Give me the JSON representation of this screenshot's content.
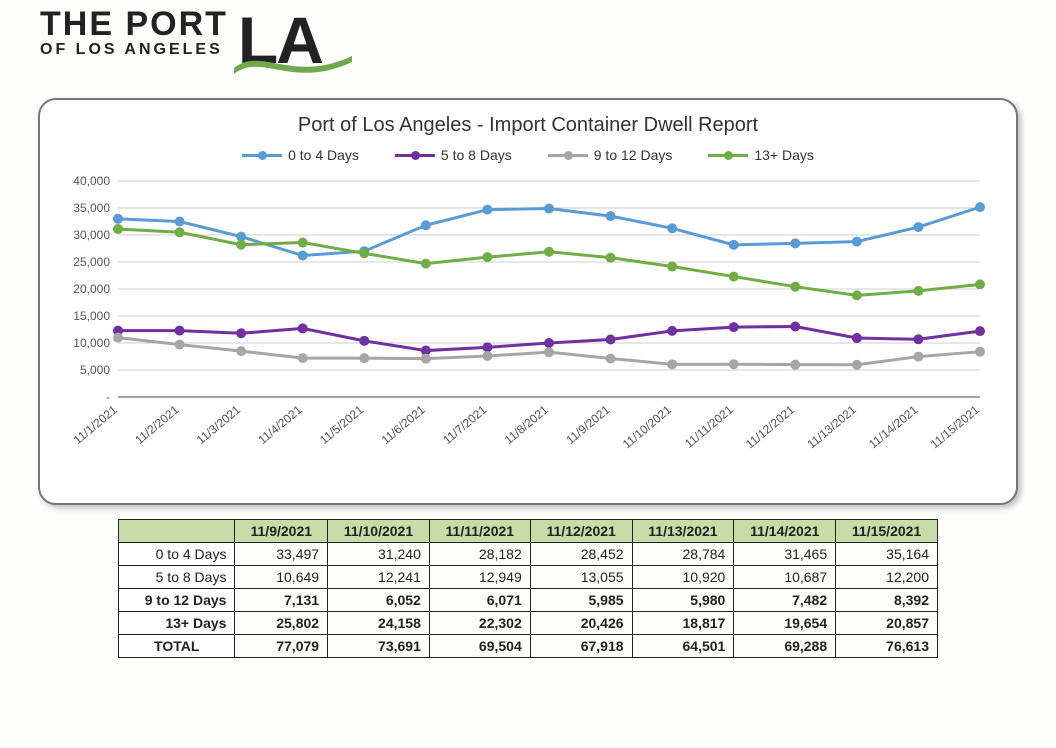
{
  "logo": {
    "line1": "THE PORT",
    "line2": "OF LOS ANGELES",
    "mark": "LA",
    "wave_color": "#6fa84f"
  },
  "chart": {
    "type": "line",
    "title": "Port of Los Angeles - Import Container Dwell Report",
    "title_fontsize": 20,
    "background_color": "#ffffff",
    "grid_color": "#cfcfcf",
    "axis_color": "#888888",
    "label_color": "#555555",
    "label_fontsize": 12,
    "line_width": 3,
    "marker_radius": 5,
    "x_labels": [
      "11/1/2021",
      "11/2/2021",
      "11/3/2021",
      "11/4/2021",
      "11/5/2021",
      "11/6/2021",
      "11/7/2021",
      "11/8/2021",
      "11/9/2021",
      "11/10/2021",
      "11/11/2021",
      "11/12/2021",
      "11/13/2021",
      "11/14/2021",
      "11/15/2021"
    ],
    "x_label_rotation": -40,
    "ylim": [
      0,
      40000
    ],
    "ytick_step": 5000,
    "y_format": "comma",
    "series": [
      {
        "name": "0 to 4 Days",
        "color": "#5b9bd5",
        "values": [
          33000,
          32500,
          29700,
          26200,
          27000,
          31800,
          34700,
          34900,
          33497,
          31240,
          28182,
          28452,
          28784,
          31465,
          35164
        ]
      },
      {
        "name": "5 to 8 Days",
        "color": "#7030a0",
        "values": [
          12300,
          12300,
          11800,
          12700,
          10400,
          8600,
          9200,
          10000,
          10649,
          12241,
          12949,
          13055,
          10920,
          10687,
          12200
        ]
      },
      {
        "name": "9 to 12 Days",
        "color": "#a6a6a6",
        "values": [
          11000,
          9700,
          8500,
          7200,
          7200,
          7100,
          7600,
          8300,
          7131,
          6052,
          6071,
          5985,
          5980,
          7482,
          8392
        ]
      },
      {
        "name": "13+  Days",
        "color": "#70ad47",
        "values": [
          31100,
          30500,
          28200,
          28600,
          26600,
          24700,
          25900,
          26900,
          25802,
          24158,
          22302,
          20426,
          18817,
          19654,
          20857
        ]
      }
    ]
  },
  "table": {
    "col_dates": [
      "11/9/2021",
      "11/10/2021",
      "11/11/2021",
      "11/12/2021",
      "11/13/2021",
      "11/14/2021",
      "11/15/2021"
    ],
    "rows": [
      {
        "label": "0 to 4 Days",
        "bold": false,
        "values": [
          33497,
          31240,
          28182,
          28452,
          28784,
          31465,
          35164
        ]
      },
      {
        "label": "5 to 8 Days",
        "bold": false,
        "values": [
          10649,
          12241,
          12949,
          13055,
          10920,
          10687,
          12200
        ]
      },
      {
        "label": "9 to 12 Days",
        "bold": true,
        "values": [
          7131,
          6052,
          6071,
          5985,
          5980,
          7482,
          8392
        ]
      },
      {
        "label": "13+  Days",
        "bold": true,
        "values": [
          25802,
          24158,
          22302,
          20426,
          18817,
          19654,
          20857
        ]
      }
    ],
    "total": {
      "label": "TOTAL",
      "values": [
        77079,
        73691,
        69504,
        67918,
        64501,
        69288,
        76613
      ]
    }
  }
}
